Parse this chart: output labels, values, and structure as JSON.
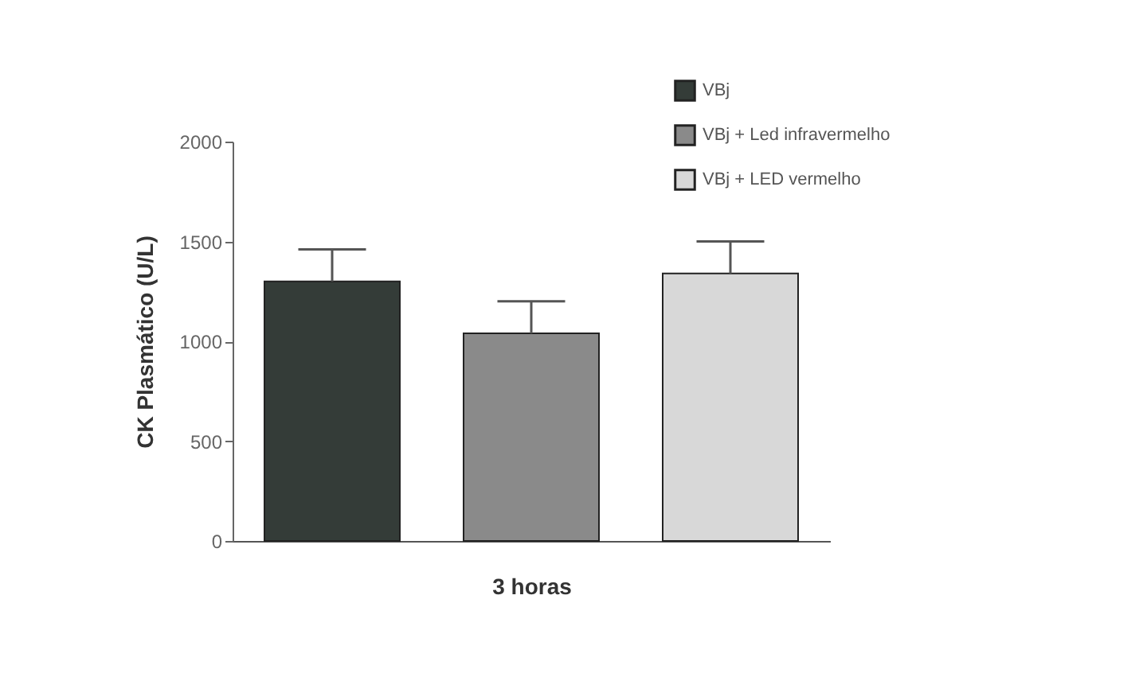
{
  "chart_data": {
    "type": "bar",
    "ylabel": "CK  Plasmático (U/L)",
    "categories": [
      "3 horas"
    ],
    "series": [
      {
        "name": "VBj",
        "color": "#343c38",
        "values": [
          1300
        ],
        "errors": [
          [
            1300,
            1460
          ]
        ]
      },
      {
        "name": "VBj + Led infravermelho",
        "color": "#8a8a8a",
        "values": [
          1040
        ],
        "errors": [
          [
            1040,
            1200
          ]
        ]
      },
      {
        "name": "VBj + LED vermelho",
        "color": "#d8d8d8",
        "values": [
          1340
        ],
        "errors": [
          [
            1340,
            1500
          ]
        ]
      }
    ],
    "ylim": [
      0,
      2000
    ],
    "yticks": [
      0,
      500,
      1000,
      1500,
      2000
    ],
    "grid": false,
    "legend": "top right"
  }
}
